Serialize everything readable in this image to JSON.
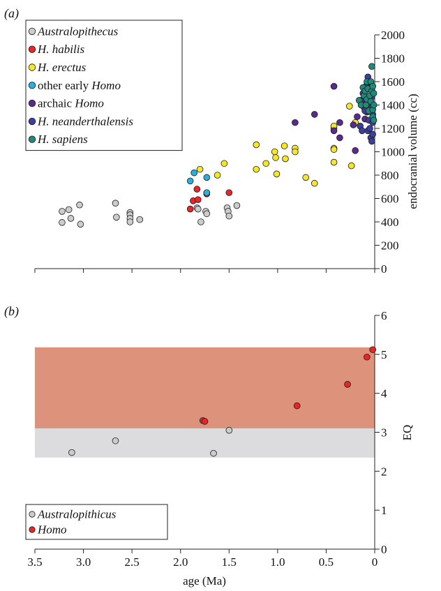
{
  "chart_data": [
    {
      "type": "scatter",
      "panel_label": "(a)",
      "title": "",
      "xlabel": "",
      "ylabel": "endocranial volume (cc)",
      "xlim": [
        3.5,
        0
      ],
      "ylim": [
        0,
        2000
      ],
      "yticks": [
        "0",
        "200",
        "400",
        "600",
        "800",
        "1000",
        "1200",
        "1400",
        "1600",
        "1800",
        "2000"
      ],
      "grid": false,
      "legend_position": "top-left",
      "series": [
        {
          "name": "Australopithecus",
          "italic_parts": [
            "Australopithecus"
          ],
          "color": "#cccccc",
          "points": [
            [
              3.22,
              395
            ],
            [
              3.22,
              490
            ],
            [
              3.15,
              505
            ],
            [
              3.13,
              430
            ],
            [
              3.04,
              545
            ],
            [
              3.03,
              380
            ],
            [
              2.67,
              560
            ],
            [
              2.66,
              440
            ],
            [
              2.52,
              480
            ],
            [
              2.52,
              460
            ],
            [
              2.52,
              430
            ],
            [
              2.52,
              400
            ],
            [
              2.42,
              420
            ],
            [
              1.83,
              520
            ],
            [
              1.82,
              510
            ],
            [
              1.79,
              400
            ],
            [
              1.74,
              490
            ],
            [
              1.73,
              470
            ],
            [
              1.52,
              520
            ],
            [
              1.51,
              490
            ],
            [
              1.5,
              450
            ],
            [
              1.42,
              540
            ]
          ]
        },
        {
          "name": "H. habilis",
          "italic_parts": [
            "H. habilis"
          ],
          "color": "#e8262a",
          "points": [
            [
              1.9,
              510
            ],
            [
              1.87,
              580
            ],
            [
              1.83,
              680
            ],
            [
              1.82,
              590
            ],
            [
              1.73,
              640
            ],
            [
              1.5,
              650
            ]
          ]
        },
        {
          "name": "H. erectus",
          "italic_parts": [
            "H. erectus"
          ],
          "color": "#f5e726",
          "points": [
            [
              1.8,
              850
            ],
            [
              1.62,
              800
            ],
            [
              1.55,
              900
            ],
            [
              1.22,
              850
            ],
            [
              1.22,
              1060
            ],
            [
              1.12,
              900
            ],
            [
              1.03,
              1000
            ],
            [
              1.02,
              950
            ],
            [
              1.01,
              810
            ],
            [
              0.93,
              1050
            ],
            [
              0.92,
              940
            ],
            [
              0.82,
              1030
            ],
            [
              0.82,
              1000
            ],
            [
              0.71,
              780
            ],
            [
              0.62,
              730
            ],
            [
              0.42,
              1200
            ],
            [
              0.42,
              1220
            ],
            [
              0.42,
              1030
            ],
            [
              0.42,
              1020
            ],
            [
              0.42,
              910
            ],
            [
              0.26,
              1390
            ],
            [
              0.24,
              880
            ],
            [
              0.2,
              1250
            ]
          ]
        },
        {
          "name": "other early Homo",
          "italic_parts": [
            "Homo"
          ],
          "color": "#29aee0",
          "points": [
            [
              1.9,
              750
            ],
            [
              1.86,
              820
            ],
            [
              1.73,
              780
            ],
            [
              1.73,
              650
            ]
          ]
        },
        {
          "name": "archaic Homo",
          "italic_parts": [
            "Homo"
          ],
          "color": "#5a2a90",
          "points": [
            [
              0.82,
              1250
            ],
            [
              0.62,
              1320
            ],
            [
              0.42,
              1560
            ],
            [
              0.42,
              1180
            ],
            [
              0.36,
              1250
            ],
            [
              0.36,
              1120
            ],
            [
              0.22,
              1230
            ],
            [
              0.2,
              1010
            ],
            [
              0.18,
              1300
            ],
            [
              0.15,
              1440
            ],
            [
              0.12,
              1430
            ],
            [
              0.1,
              1280
            ],
            [
              0.08,
              1340
            ]
          ]
        },
        {
          "name": "H. neanderthalensis",
          "italic_parts": [
            "H. neanderthalensis"
          ],
          "color": "#3b3f9e",
          "points": [
            [
              0.15,
              1220
            ],
            [
              0.13,
              1180
            ],
            [
              0.12,
              1500
            ],
            [
              0.11,
              1380
            ],
            [
              0.1,
              1350
            ],
            [
              0.09,
              1560
            ],
            [
              0.08,
              1420
            ],
            [
              0.07,
              1640
            ],
            [
              0.07,
              1180
            ],
            [
              0.06,
              1270
            ],
            [
              0.05,
              1600
            ],
            [
              0.05,
              1450
            ],
            [
              0.05,
              1200
            ],
            [
              0.04,
              1550
            ],
            [
              0.04,
              1120
            ],
            [
              0.03,
              1470
            ],
            [
              0.03,
              1380
            ],
            [
              0.03,
              1090
            ],
            [
              0.02,
              1320
            ],
            [
              0.02,
              1250
            ],
            [
              0.02,
              1150
            ]
          ]
        },
        {
          "name": "H. sapiens",
          "italic_parts": [
            "H. sapiens"
          ],
          "color": "#1f8a78",
          "points": [
            [
              0.16,
              1440
            ],
            [
              0.14,
              1400
            ],
            [
              0.12,
              1550
            ],
            [
              0.11,
              1480
            ],
            [
              0.1,
              1520
            ],
            [
              0.09,
              1400
            ],
            [
              0.08,
              1600
            ],
            [
              0.08,
              1450
            ],
            [
              0.07,
              1540
            ],
            [
              0.06,
              1350
            ],
            [
              0.05,
              1480
            ],
            [
              0.04,
              1600
            ],
            [
              0.04,
              1430
            ],
            [
              0.03,
              1730
            ],
            [
              0.03,
              1520
            ],
            [
              0.02,
              1560
            ],
            [
              0.02,
              1360
            ],
            [
              0.02,
              1300
            ],
            [
              0.01,
              1500
            ],
            [
              0.01,
              1400
            ],
            [
              0.01,
              1270
            ]
          ]
        }
      ]
    },
    {
      "type": "scatter",
      "panel_label": "(b)",
      "title": "",
      "xlabel": "age (Ma)",
      "ylabel": "EQ",
      "xlim": [
        3.5,
        0
      ],
      "ylim": [
        0,
        6
      ],
      "xticks": [
        "3.5",
        "3.0",
        "2.5",
        "2.0",
        "1.5",
        "1.0",
        "0.5",
        "0"
      ],
      "yticks": [
        "0",
        "1",
        "2",
        "3",
        "4",
        "5",
        "6"
      ],
      "grid": false,
      "legend_position": "bottom-left",
      "bands": [
        {
          "from": 2.35,
          "to": 3.1,
          "color": "#dcdcde"
        },
        {
          "from": 3.1,
          "to": 5.18,
          "color": "#dd927c"
        }
      ],
      "series": [
        {
          "name": "Australopithicus",
          "italic_parts": [
            "Australopithicus"
          ],
          "color": "#cccccc",
          "points": [
            [
              3.12,
              2.48
            ],
            [
              2.67,
              2.78
            ],
            [
              1.66,
              2.46
            ],
            [
              1.5,
              3.05
            ]
          ]
        },
        {
          "name": "Homo",
          "italic_parts": [
            "Homo"
          ],
          "color": "#e8262a",
          "points": [
            [
              1.77,
              3.3
            ],
            [
              1.75,
              3.28
            ],
            [
              0.8,
              3.68
            ],
            [
              0.28,
              4.23
            ],
            [
              0.08,
              4.93
            ],
            [
              0.02,
              5.12
            ]
          ]
        }
      ]
    }
  ]
}
